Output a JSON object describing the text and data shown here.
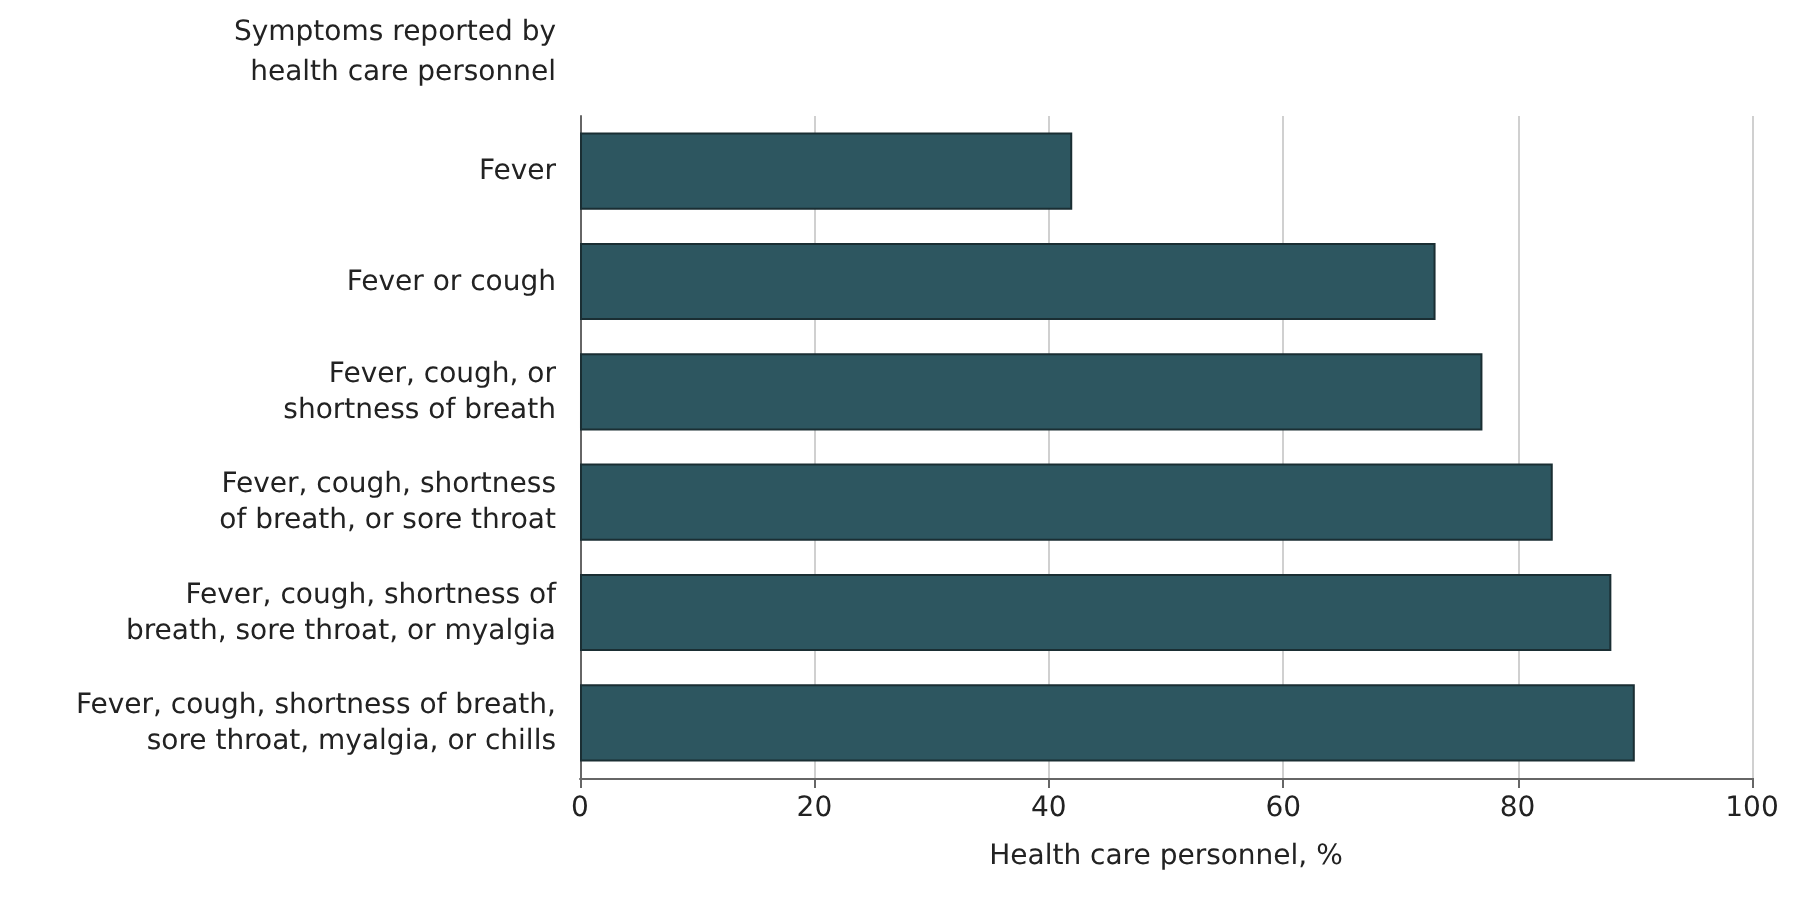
{
  "chart_data": {
    "type": "bar",
    "orientation": "horizontal",
    "ylabel": "Symptoms reported by\nhealth care personnel",
    "xlabel": "Health care personnel, %",
    "categories": [
      "Fever",
      "Fever or cough",
      "Fever, cough, or\nshortness of breath",
      "Fever, cough, shortness\nof breath, or sore throat",
      "Fever, cough, shortness of\nbreath, sore throat, or myalgia",
      "Fever, cough, shortness of breath,\nsore throat, myalgia, or chills"
    ],
    "values": [
      42,
      73,
      77,
      83,
      88,
      90
    ],
    "color": "#2d5660",
    "xlim": [
      0,
      100
    ],
    "xticks": [
      0,
      20,
      40,
      60,
      80,
      100
    ],
    "grid": "x"
  }
}
